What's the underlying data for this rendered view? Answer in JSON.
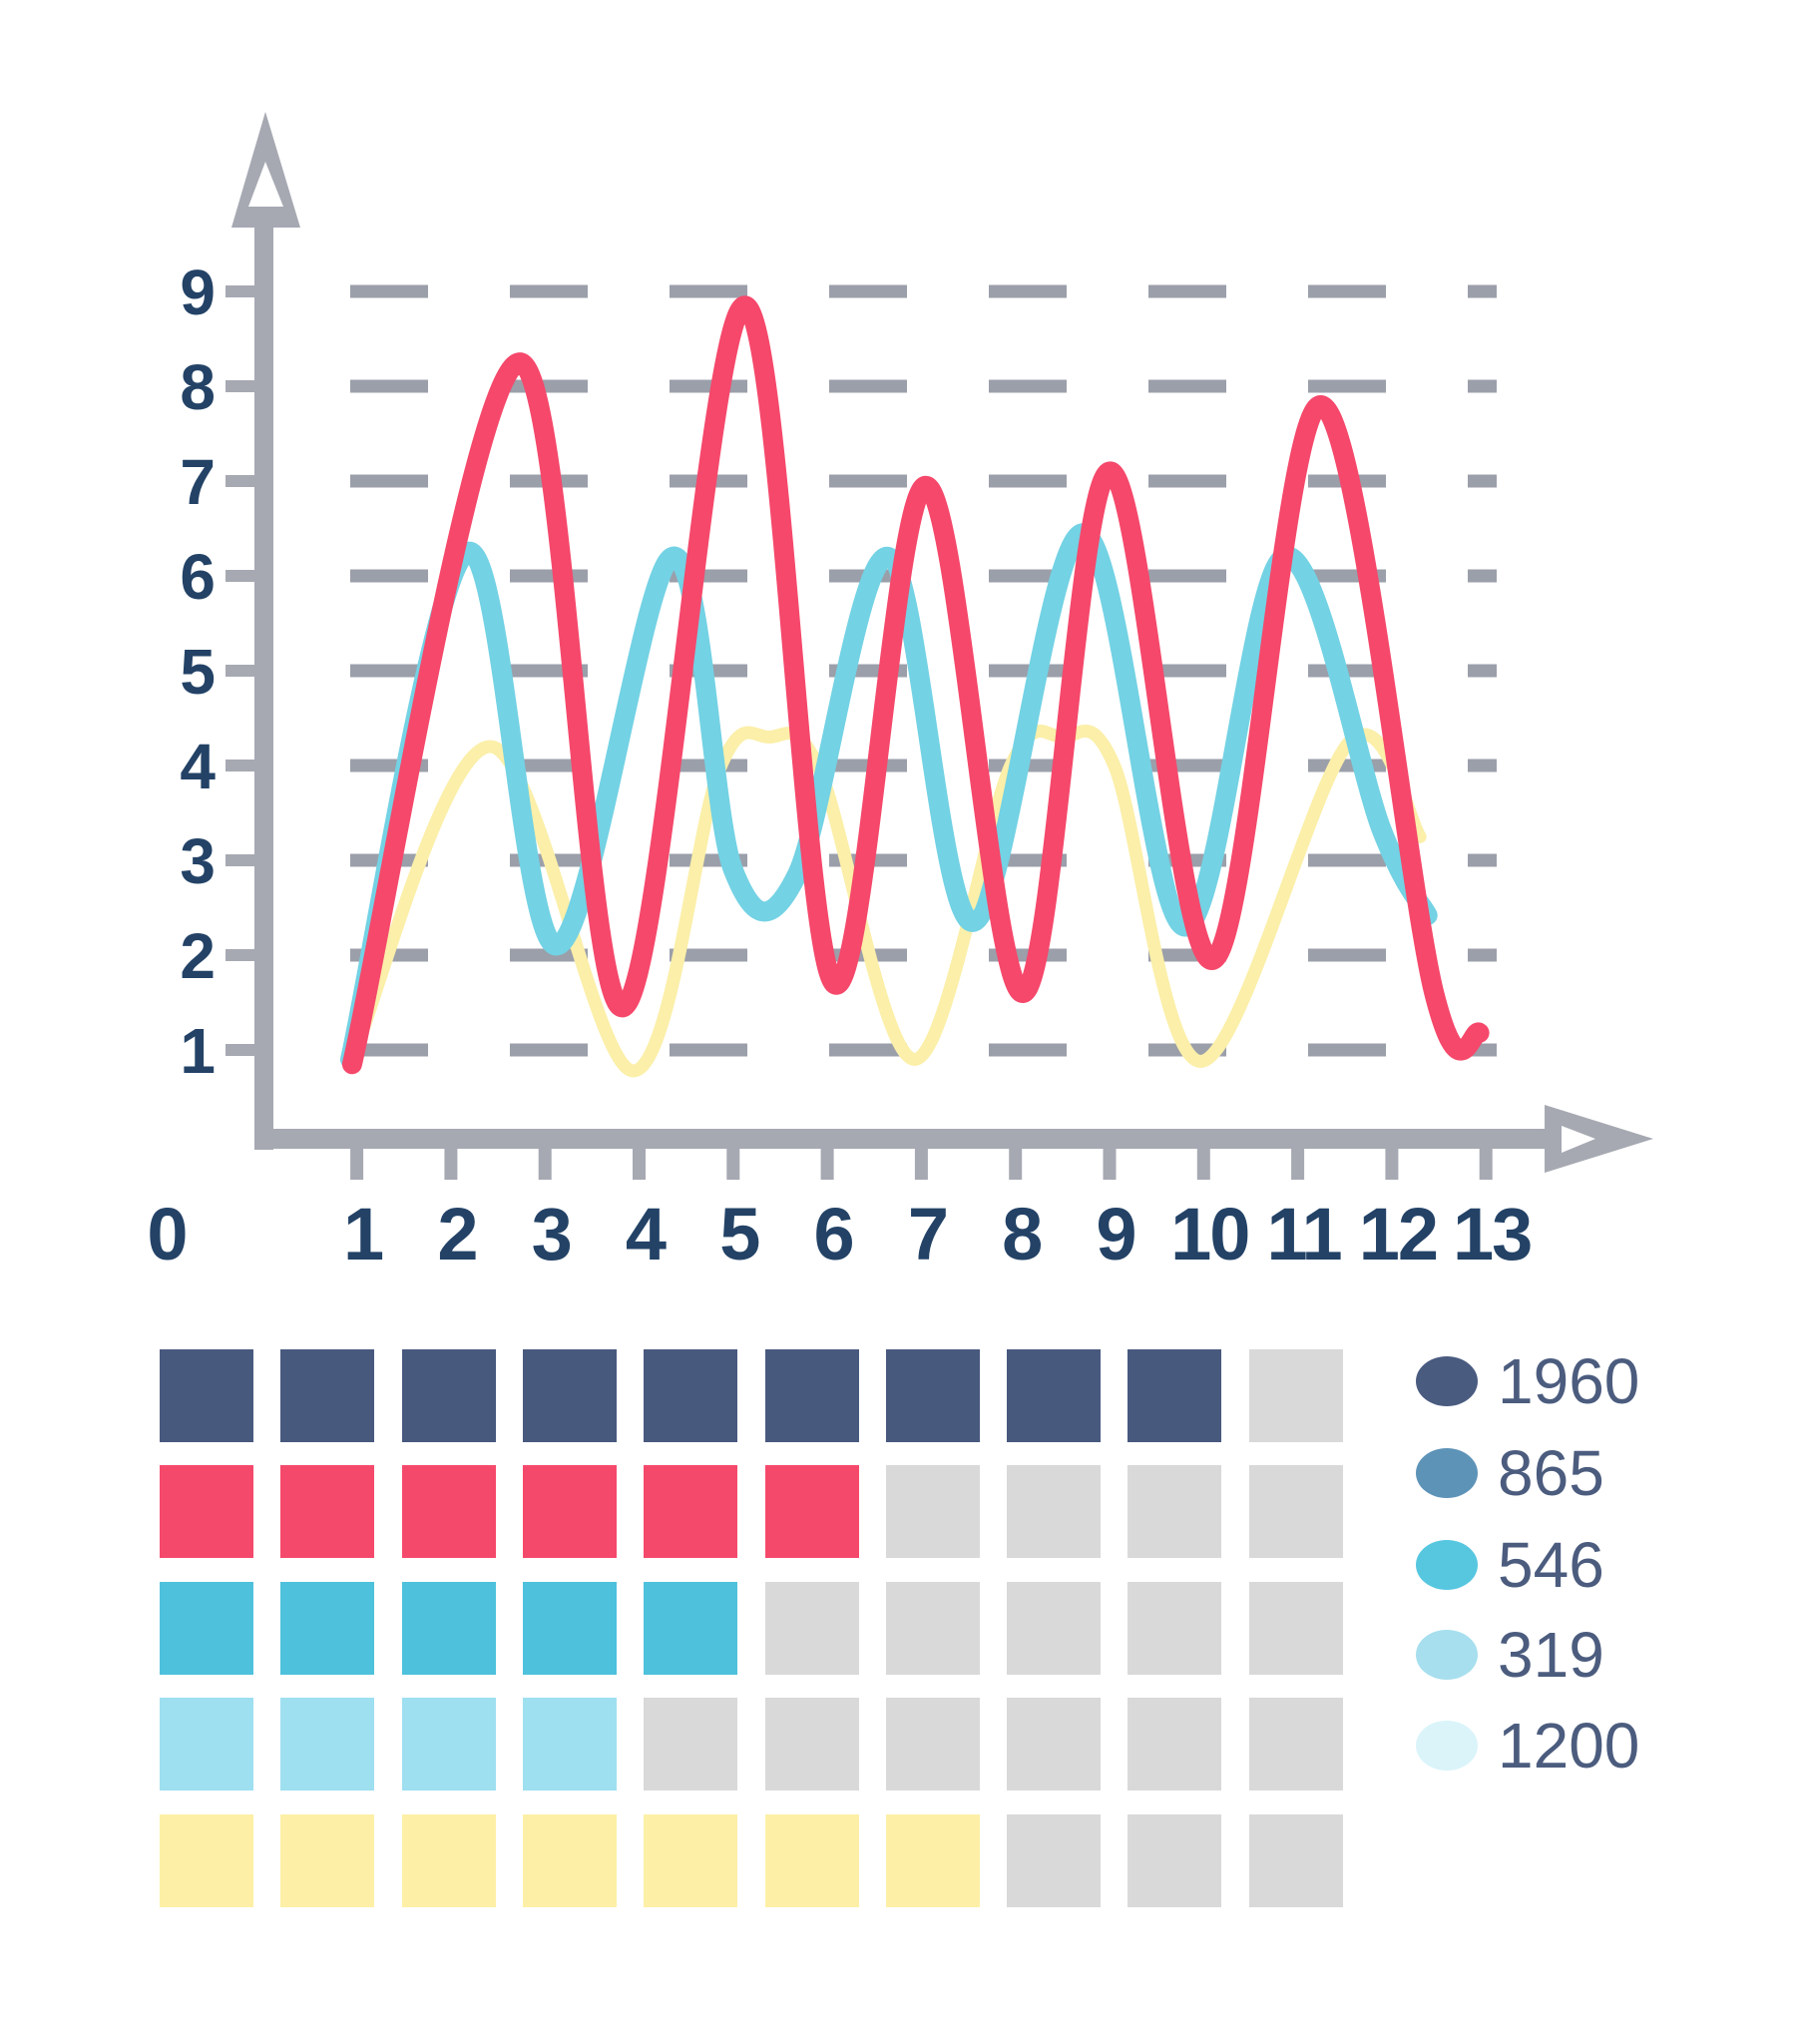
{
  "chart_data": [
    {
      "type": "line",
      "title": "",
      "origin_label": "0",
      "x_ticks": [
        "1",
        "2",
        "3",
        "4",
        "5",
        "6",
        "7",
        "8",
        "9",
        "10",
        "11",
        "12",
        "13"
      ],
      "y_ticks": [
        "9",
        "8",
        "7",
        "6",
        "5",
        "4",
        "3",
        "2",
        "1"
      ],
      "x_range": [
        0,
        13
      ],
      "y_range": [
        0,
        9
      ],
      "grid": "dashed-horizontal",
      "series": [
        {
          "name": "yellow-wave",
          "color": "#fbefa9",
          "stroke_width": 13,
          "points": [
            [
              0.94,
              0.87
            ],
            [
              2.42,
              4.2
            ],
            [
              3.93,
              0.78
            ],
            [
              4.85,
              3.95
            ],
            [
              5.38,
              4.3
            ],
            [
              5.92,
              3.95
            ],
            [
              6.93,
              0.9
            ],
            [
              7.95,
              4.0
            ],
            [
              8.5,
              4.3
            ],
            [
              9.05,
              4.0
            ],
            [
              9.98,
              0.88
            ],
            [
              11.55,
              4.25
            ],
            [
              12.3,
              3.25
            ]
          ]
        },
        {
          "name": "cyan-wave",
          "color": "#73d2e4",
          "stroke_width": 20,
          "points": [
            [
              0.93,
              0.9
            ],
            [
              2.17,
              6.25
            ],
            [
              3.12,
              2.1
            ],
            [
              4.35,
              6.2
            ],
            [
              5.0,
              2.9
            ],
            [
              5.68,
              2.85
            ],
            [
              6.65,
              6.2
            ],
            [
              7.55,
              2.35
            ],
            [
              8.72,
              6.45
            ],
            [
              9.8,
              2.3
            ],
            [
              10.85,
              6.2
            ],
            [
              11.9,
              3.3
            ],
            [
              12.38,
              2.42
            ]
          ]
        },
        {
          "name": "red-wave",
          "color": "#f5486b",
          "stroke_width": 20,
          "points": [
            [
              0.95,
              0.85
            ],
            [
              2.72,
              8.25
            ],
            [
              3.83,
              1.45
            ],
            [
              5.12,
              8.85
            ],
            [
              6.07,
              1.7
            ],
            [
              7.05,
              6.95
            ],
            [
              8.08,
              1.6
            ],
            [
              9.0,
              7.1
            ],
            [
              10.1,
              1.95
            ],
            [
              11.25,
              7.8
            ],
            [
              12.45,
              1.6
            ],
            [
              12.93,
              1.18
            ]
          ]
        }
      ]
    },
    {
      "type": "waffle",
      "columns": 10,
      "empty_color": "#d9d9da",
      "rows": [
        {
          "name": "navy",
          "color": "#48597e",
          "filled": 9
        },
        {
          "name": "pink",
          "color": "#f5496b",
          "filled": 6
        },
        {
          "name": "cyan",
          "color": "#4ec1dc",
          "filled": 5
        },
        {
          "name": "light-blue",
          "color": "#9edff0",
          "filled": 4
        },
        {
          "name": "yellow",
          "color": "#fdf0a6",
          "filled": 7
        }
      ]
    },
    {
      "type": "legend",
      "position": "bottom-right",
      "items": [
        {
          "color": "#4a5b80",
          "label": "1960"
        },
        {
          "color": "#5e93b8",
          "label": "865"
        },
        {
          "color": "#57c7e0",
          "label": "546"
        },
        {
          "color": "#a7dfee",
          "label": "319"
        },
        {
          "color": "#daf4fa",
          "label": "1200"
        }
      ]
    }
  ],
  "colors": {
    "axis": "#a6a9b2",
    "grid": "#9b9faa",
    "tick_label": "#234266",
    "legend_text": "#4b5c7e",
    "background": "#ffffff"
  }
}
